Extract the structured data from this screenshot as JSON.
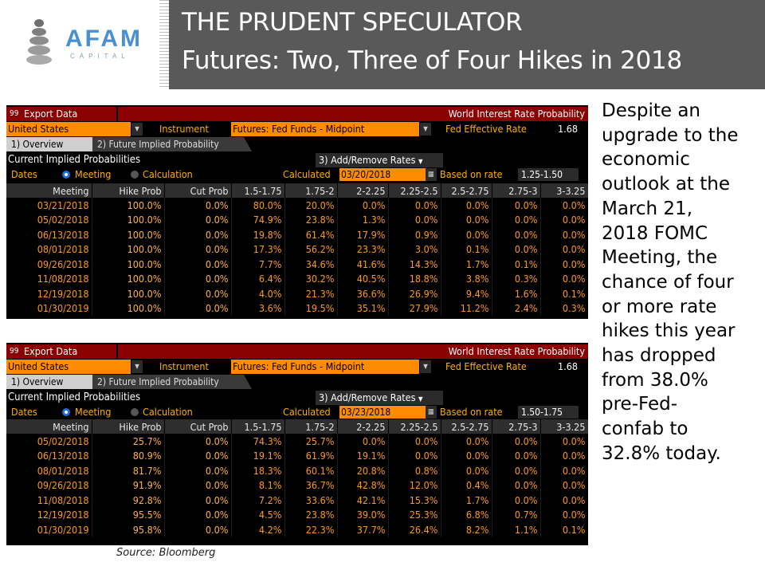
{
  "header": {
    "logo_text": "AFAM",
    "logo_sub": "CAPITAL",
    "title_line1": "THE PRUDENT SPECULATOR",
    "title_line2": "Futures: Two, Three of Four Hikes in 2018"
  },
  "panels": [
    {
      "export_label": "Export Data",
      "export_icon": "99",
      "title": "World Interest Rate Probability",
      "country": "United States",
      "instrument_label": "Instrument",
      "instrument": "Futures: Fed Funds - Midpoint",
      "fed_label": "Fed Effective Rate",
      "fed_value": "1.68",
      "tab1": "1) Overview",
      "tab2": "2) Future Implied Probability",
      "current_label": "Current Implied Probabilities",
      "add_remove": "3) Add/Remove Rates",
      "dates_label": "Dates",
      "meeting_label": "Meeting",
      "calculation_label": "Calculation",
      "calculated_label": "Calculated",
      "calculated_date": "03/20/2018",
      "based_label": "Based on rate",
      "based_value": "1.25-1.50",
      "columns": [
        "Meeting",
        "Hike Prob",
        "Cut Prob",
        "1.5-1.75",
        "1.75-2",
        "2-2.25",
        "2.25-2.5",
        "2.5-2.75",
        "2.75-3",
        "3-3.25"
      ],
      "rows": [
        [
          "03/21/2018",
          "100.0%",
          "0.0%",
          "80.0%",
          "20.0%",
          "0.0%",
          "0.0%",
          "0.0%",
          "0.0%",
          "0.0%"
        ],
        [
          "05/02/2018",
          "100.0%",
          "0.0%",
          "74.9%",
          "23.8%",
          "1.3%",
          "0.0%",
          "0.0%",
          "0.0%",
          "0.0%"
        ],
        [
          "06/13/2018",
          "100.0%",
          "0.0%",
          "19.8%",
          "61.4%",
          "17.9%",
          "0.9%",
          "0.0%",
          "0.0%",
          "0.0%"
        ],
        [
          "08/01/2018",
          "100.0%",
          "0.0%",
          "17.3%",
          "56.2%",
          "23.3%",
          "3.0%",
          "0.1%",
          "0.0%",
          "0.0%"
        ],
        [
          "09/26/2018",
          "100.0%",
          "0.0%",
          "7.7%",
          "34.6%",
          "41.6%",
          "14.3%",
          "1.7%",
          "0.1%",
          "0.0%"
        ],
        [
          "11/08/2018",
          "100.0%",
          "0.0%",
          "6.4%",
          "30.2%",
          "40.5%",
          "18.8%",
          "3.8%",
          "0.3%",
          "0.0%"
        ],
        [
          "12/19/2018",
          "100.0%",
          "0.0%",
          "4.0%",
          "21.3%",
          "36.6%",
          "26.9%",
          "9.4%",
          "1.6%",
          "0.1%"
        ],
        [
          "01/30/2019",
          "100.0%",
          "0.0%",
          "3.6%",
          "19.5%",
          "35.1%",
          "27.9%",
          "11.2%",
          "2.4%",
          "0.3%"
        ]
      ]
    },
    {
      "export_label": "Export Data",
      "export_icon": "99",
      "title": "World Interest Rate Probability",
      "country": "United States",
      "instrument_label": "Instrument",
      "instrument": "Futures: Fed Funds - Midpoint",
      "fed_label": "Fed Effective Rate",
      "fed_value": "1.68",
      "tab1": "1) Overview",
      "tab2": "2) Future Implied Probability",
      "current_label": "Current Implied Probabilities",
      "add_remove": "3) Add/Remove Rates",
      "dates_label": "Dates",
      "meeting_label": "Meeting",
      "calculation_label": "Calculation",
      "calculated_label": "Calculated",
      "calculated_date": "03/23/2018",
      "based_label": "Based on rate",
      "based_value": "1.50-1.75",
      "columns": [
        "Meeting",
        "Hike Prob",
        "Cut Prob",
        "1.5-1.75",
        "1.75-2",
        "2-2.25",
        "2.25-2.5",
        "2.5-2.75",
        "2.75-3",
        "3-3.25"
      ],
      "rows": [
        [
          "05/02/2018",
          "25.7%",
          "0.0%",
          "74.3%",
          "25.7%",
          "0.0%",
          "0.0%",
          "0.0%",
          "0.0%",
          "0.0%"
        ],
        [
          "06/13/2018",
          "80.9%",
          "0.0%",
          "19.1%",
          "61.9%",
          "19.1%",
          "0.0%",
          "0.0%",
          "0.0%",
          "0.0%"
        ],
        [
          "08/01/2018",
          "81.7%",
          "0.0%",
          "18.3%",
          "60.1%",
          "20.8%",
          "0.8%",
          "0.0%",
          "0.0%",
          "0.0%"
        ],
        [
          "09/26/2018",
          "91.9%",
          "0.0%",
          "8.1%",
          "36.7%",
          "42.8%",
          "12.0%",
          "0.4%",
          "0.0%",
          "0.0%"
        ],
        [
          "11/08/2018",
          "92.8%",
          "0.0%",
          "7.2%",
          "33.6%",
          "42.1%",
          "15.3%",
          "1.7%",
          "0.0%",
          "0.0%"
        ],
        [
          "12/19/2018",
          "95.5%",
          "0.0%",
          "4.5%",
          "23.8%",
          "39.0%",
          "25.3%",
          "6.8%",
          "0.7%",
          "0.0%"
        ],
        [
          "01/30/2019",
          "95.8%",
          "0.0%",
          "4.2%",
          "22.3%",
          "37.7%",
          "26.4%",
          "8.2%",
          "1.1%",
          "0.1%"
        ]
      ]
    }
  ],
  "side_text": "Despite an\nupgrade to the\neconomic\noutlook at the\nMarch 21,\n2018 FOMC\nMeeting, the\nchance of four\nor more rate\nhikes this year\nhas dropped\nfrom 38.0%\npre-Fed-\nconfab to\n32.8% today.",
  "source": "Source: Bloomberg",
  "colors": {
    "header_bg": "#595959",
    "logo_blue": "#4a8fcf",
    "bloomberg_red": "#8b0000",
    "bloomberg_amber": "#ff8c00",
    "data_orange": "#ff9a1a"
  }
}
